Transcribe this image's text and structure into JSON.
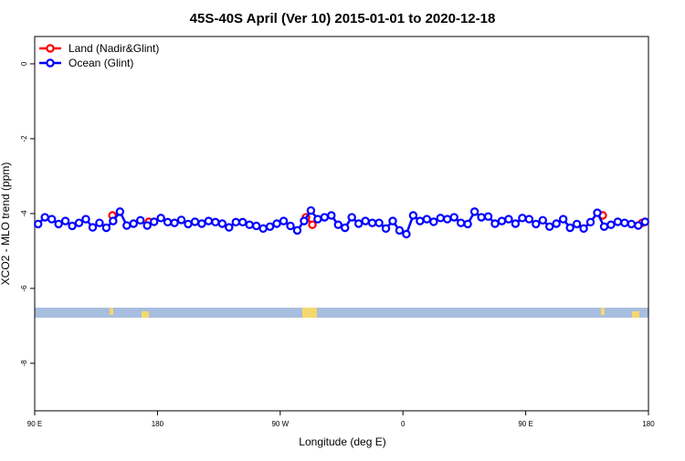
{
  "chart_data": {
    "type": "line",
    "title": "45S-40S April (Ver 10)   2015-01-01 to 2020-12-18",
    "xlabel": "Longitude (deg E)",
    "ylabel": "XCO2 - MLO trend (ppm)",
    "xlim": [
      90,
      540
    ],
    "xticks": [
      {
        "value": 90,
        "label": "90 E"
      },
      {
        "value": 180,
        "label": "180"
      },
      {
        "value": 270,
        "label": "90 W"
      },
      {
        "value": 360,
        "label": "0"
      },
      {
        "value": 450,
        "label": "90 E"
      },
      {
        "value": 540,
        "label": "180"
      }
    ],
    "ylim": [
      -9.27,
      0.73
    ],
    "yticks": [
      0,
      -2,
      -4,
      -6,
      -8
    ],
    "legend": "top-left",
    "series": [
      {
        "name": "Land (Nadir&Glint)",
        "color": "#ff0000",
        "x": [
          147,
          173.7,
          288.9,
          293.6,
          506.5,
          535.3
        ],
        "values": [
          -4.05,
          -4.22,
          -4.1,
          -4.3,
          -4.05,
          -4.25
        ]
      },
      {
        "name": "Ocean (Glint)",
        "color": "#0000ff",
        "x": [
          92.5,
          97.5,
          102.5,
          107.5,
          112.5,
          117.5,
          122.5,
          127.5,
          132.5,
          137.5,
          142.5,
          147.5,
          152.5,
          157.5,
          162.5,
          167.5,
          172.5,
          177.5,
          182.5,
          187.5,
          192.5,
          197.5,
          202.5,
          207.5,
          212.5,
          217.5,
          222.5,
          227.5,
          232.5,
          237.5,
          242.5,
          247.5,
          252.5,
          257.5,
          262.5,
          267.5,
          272.5,
          277.5,
          282.5,
          287.5,
          292.5,
          297.5,
          302.5,
          307.5,
          312.5,
          317.5,
          322.5,
          327.5,
          332.5,
          337.5,
          342.5,
          347.5,
          352.5,
          357.5,
          362.5,
          367.5,
          372.5,
          377.5,
          382.5,
          387.5,
          392.5,
          397.5,
          402.5,
          407.5,
          412.5,
          417.5,
          422.5,
          427.5,
          432.5,
          437.5,
          442.5,
          447.5,
          452.5,
          457.5,
          462.5,
          467.5,
          472.5,
          477.5,
          482.5,
          487.5,
          492.5,
          497.5,
          502.5,
          507.5,
          512.5,
          517.5,
          522.5,
          527.5,
          532.5,
          537.5
        ],
        "values": [
          -4.28,
          -4.1,
          -4.15,
          -4.28,
          -4.2,
          -4.33,
          -4.25,
          -4.15,
          -4.37,
          -4.25,
          -4.38,
          -4.2,
          -3.95,
          -4.32,
          -4.27,
          -4.18,
          -4.32,
          -4.22,
          -4.12,
          -4.23,
          -4.25,
          -4.17,
          -4.28,
          -4.22,
          -4.27,
          -4.2,
          -4.23,
          -4.27,
          -4.37,
          -4.23,
          -4.23,
          -4.3,
          -4.33,
          -4.4,
          -4.35,
          -4.27,
          -4.2,
          -4.33,
          -4.45,
          -4.2,
          -3.92,
          -4.15,
          -4.1,
          -4.05,
          -4.3,
          -4.38,
          -4.1,
          -4.27,
          -4.2,
          -4.25,
          -4.25,
          -4.4,
          -4.2,
          -4.45,
          -4.55,
          -4.05,
          -4.2,
          -4.15,
          -4.22,
          -4.12,
          -4.15,
          -4.1,
          -4.25,
          -4.28,
          -3.95,
          -4.1,
          -4.08,
          -4.27,
          -4.2,
          -4.15,
          -4.27,
          -4.12,
          -4.15,
          -4.28,
          -4.18,
          -4.35,
          -4.27,
          -4.15,
          -4.38,
          -4.28,
          -4.4,
          -4.23,
          -3.98,
          -4.35,
          -4.3,
          -4.22,
          -4.25,
          -4.28,
          -4.32,
          -4.22
        ]
      }
    ]
  }
}
